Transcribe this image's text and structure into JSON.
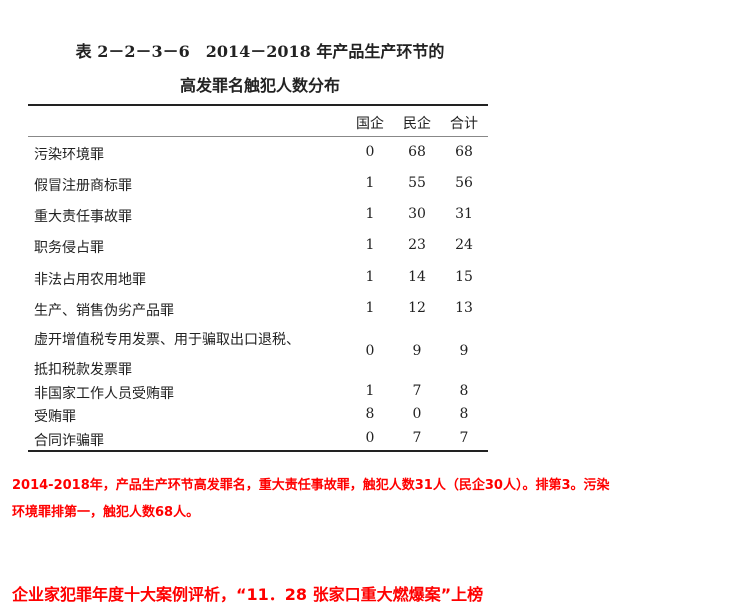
{
  "title": {
    "line1": "表 2－2－3－6　2014－2018 年产品生产环节的",
    "line2": "高发罪名触犯人数分布"
  },
  "table": {
    "headers": [
      "国企",
      "民企",
      "合计"
    ],
    "rows": [
      {
        "name": "污染环境罪",
        "soe": "0",
        "private": "68",
        "total": "68"
      },
      {
        "name": "假冒注册商标罪",
        "soe": "1",
        "private": "55",
        "total": "56"
      },
      {
        "name": "重大责任事故罪",
        "soe": "1",
        "private": "30",
        "total": "31"
      },
      {
        "name": "职务侵占罪",
        "soe": "1",
        "private": "23",
        "total": "24"
      },
      {
        "name": "非法占用农用地罪",
        "soe": "1",
        "private": "14",
        "total": "15"
      },
      {
        "name": "生产、销售伪劣产品罪",
        "soe": "1",
        "private": "12",
        "total": "13"
      },
      {
        "name": "虚开增值税专用发票、用于骗取出口退税、",
        "name2": "抵扣税款发票罪",
        "soe": "0",
        "private": "9",
        "total": "9"
      },
      {
        "name": "非国家工作人员受贿罪",
        "soe": "1",
        "private": "7",
        "total": "8"
      },
      {
        "name": "受贿罪",
        "soe": "8",
        "private": "0",
        "total": "8"
      },
      {
        "name": "合同诈骗罪",
        "soe": "0",
        "private": "7",
        "total": "7"
      }
    ]
  },
  "notes": {
    "line1": "2014-2018年，产品生产环节高发罪名，重大责任事故罪，触犯人数31人（民企30人）。排第3。污染",
    "line2": "环境罪排第一，触犯人数68人。",
    "headline": "企业家犯罪年度十大案例评析，“11．28 张家口重大燃爆案”上榜"
  },
  "colors": {
    "note": "#ff0000"
  }
}
